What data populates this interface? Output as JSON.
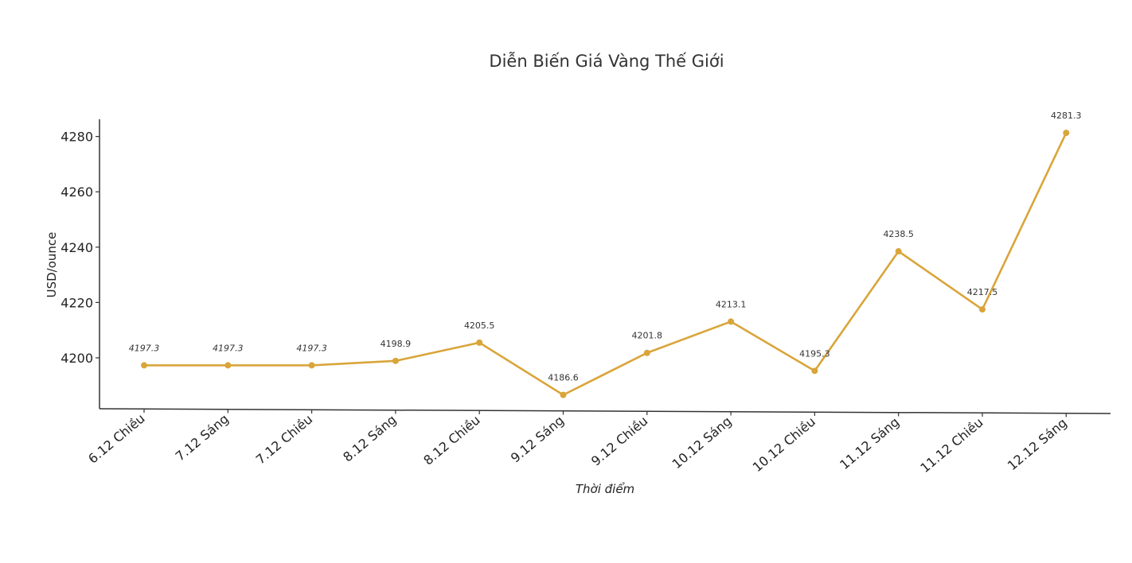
{
  "chart_data": {
    "type": "line",
    "title": "Diễn Biến Giá Vàng Thế Giới",
    "xlabel": "Thời điểm",
    "ylabel": "USD/ounce",
    "categories": [
      "6.12 Chiều",
      "7.12 Sáng",
      "7.12 Chiều",
      "8.12 Sáng",
      "8.12 Chiều",
      "9.12 Sáng",
      "9.12 Chiều",
      "10.12 Sáng",
      "10.12 Chiều",
      "11.12 Sáng",
      "11.12 Chiều",
      "12.12 Sáng"
    ],
    "series": [
      {
        "values": [
          4197.3,
          4197.3,
          4197.3,
          4198.9,
          4205.5,
          4186.6,
          4201.8,
          4213.1,
          4195.3,
          4238.5,
          4217.5,
          4281.3
        ]
      }
    ],
    "data_labels": [
      "4197.3",
      "4197.3",
      "4197.3",
      "4198.9",
      "4205.5",
      "4186.6",
      "4201.8",
      "4213.1",
      "4195.3",
      "4238.5",
      "4217.5",
      "4281.3"
    ],
    "y_ticks": [
      4200,
      4220,
      4240,
      4260,
      4280
    ],
    "y_tick_labels": [
      "4200",
      "4220",
      "4240",
      "4260",
      "4280"
    ],
    "ylim": [
      4181,
      4286
    ],
    "color": "#D9A53A",
    "grid": false,
    "legend": "none"
  }
}
